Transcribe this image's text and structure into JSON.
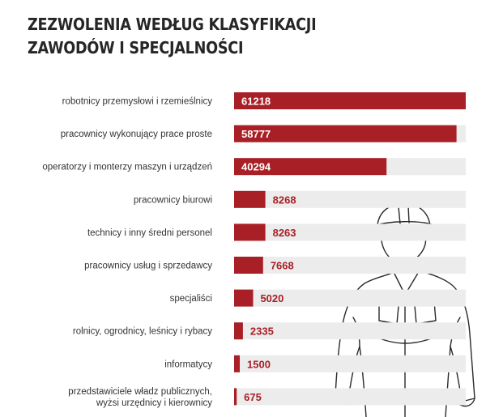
{
  "chart_data": {
    "type": "bar",
    "orientation": "horizontal",
    "title": [
      "ZEZWOLENIA WEDŁUG KLASYFIKACJI",
      "ZAWODÓW I SPECJALNOŚCI"
    ],
    "categories": [
      [
        "robotnicy przemysłowi i rzemieślnicy"
      ],
      [
        "pracownicy wykonujący prace proste"
      ],
      [
        "operatorzy i monterzy maszyn i urządzeń"
      ],
      [
        "pracownicy biurowi"
      ],
      [
        "technicy i inny średni personel"
      ],
      [
        "pracownicy usług i sprzedawcy"
      ],
      [
        "specjaliści"
      ],
      [
        "rolnicy, ogrodnicy, leśnicy i rybacy"
      ],
      [
        "informatycy"
      ],
      [
        "przedstawiciele władz publicznych,",
        "wyżsi urzędnicy i kierownicy"
      ]
    ],
    "values": [
      61218,
      58777,
      40294,
      8268,
      8263,
      7668,
      5020,
      2335,
      1500,
      675
    ],
    "xlim": [
      0,
      61218
    ],
    "grid": false,
    "legend": "none"
  },
  "colors": {
    "bar": "#a81f26",
    "track": "#ececec",
    "label_inside": "#ffffff",
    "label_outside": "#a81f26",
    "category_text": "#333333",
    "title": "#262626"
  },
  "decoration": {
    "icon": "worker-silhouette-icon"
  }
}
